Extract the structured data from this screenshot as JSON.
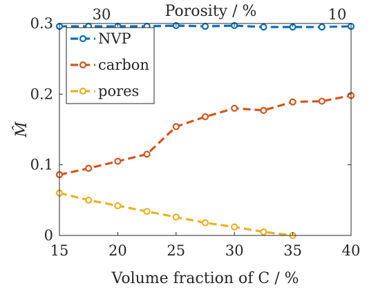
{
  "chart_data": {
    "type": "line",
    "xlabel": "Volume fraction of C / %",
    "ylabel": "M̂",
    "top_xlabel": "Porosity / %",
    "top_ticks": [
      "30",
      "10"
    ],
    "xlim": [
      15,
      40
    ],
    "ylim": [
      0,
      0.3
    ],
    "xticks": [
      15,
      20,
      25,
      30,
      35,
      40
    ],
    "yticks": [
      0,
      0.1,
      0.2,
      0.3
    ],
    "ytick_labels": [
      "0",
      "0.1",
      "0.2",
      "0.3"
    ],
    "grid": false,
    "legend_position": "top-left",
    "series": [
      {
        "name": "NVP",
        "color": "#0072BD",
        "x": [
          15,
          17.5,
          20,
          22.5,
          25,
          27.5,
          30,
          32.5,
          35,
          37.5,
          40
        ],
        "y": [
          0.296,
          0.296,
          0.296,
          0.296,
          0.297,
          0.296,
          0.297,
          0.295,
          0.295,
          0.295,
          0.296
        ]
      },
      {
        "name": "carbon",
        "color": "#D95319",
        "x": [
          15,
          17.5,
          20,
          22.5,
          25,
          27.5,
          30,
          32.5,
          35,
          37.5,
          40
        ],
        "y": [
          0.086,
          0.095,
          0.105,
          0.115,
          0.154,
          0.168,
          0.18,
          0.177,
          0.189,
          0.19,
          0.198
        ]
      },
      {
        "name": "pores",
        "color": "#EDB120",
        "x": [
          15,
          17.5,
          20,
          22.5,
          25,
          27.5,
          30,
          32.5,
          35
        ],
        "y": [
          0.06,
          0.05,
          0.042,
          0.034,
          0.026,
          0.018,
          0.012,
          0.005,
          0.0
        ]
      }
    ]
  }
}
